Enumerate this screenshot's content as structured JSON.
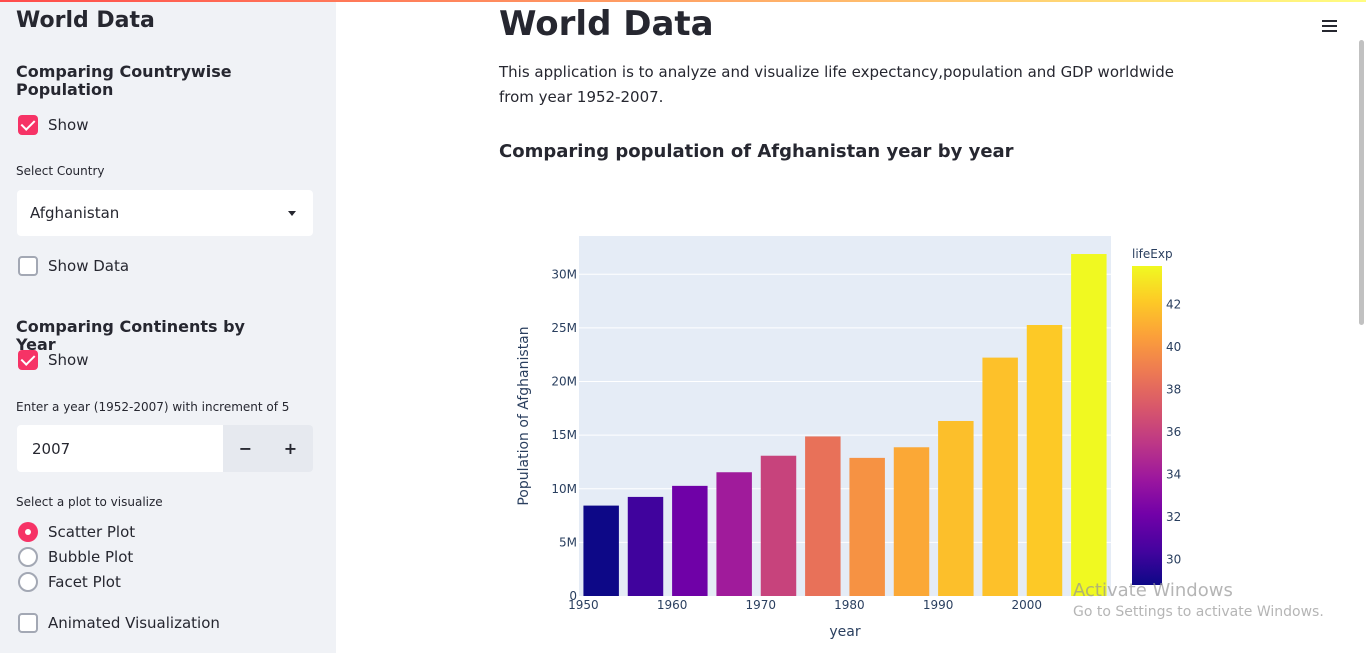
{
  "sidebar": {
    "title": "World Data",
    "section1": {
      "heading": "Comparing Countrywise Population",
      "show_label": "Show",
      "show_checked": true,
      "select_label": "Select Country",
      "select_value": "Afghanistan",
      "show_data_label": "Show Data",
      "show_data_checked": false
    },
    "section2": {
      "heading": "Comparing Continents by Year",
      "show_label": "Show",
      "show_checked": true,
      "year_label": "Enter a year (1952-2007) with increment of 5",
      "year_value": "2007",
      "minus_label": "−",
      "plus_label": "+",
      "plot_label": "Select a plot to visualize",
      "plot_options": [
        "Scatter Plot",
        "Bubble Plot",
        "Facet Plot"
      ],
      "plot_selected": "Scatter Plot",
      "animated_label": "Animated Visualization",
      "animated_checked": false
    }
  },
  "main": {
    "title": "World Data",
    "intro": "This application is to analyze and visualize life expectancy,population and GDP worldwide from year 1952-2007.",
    "subheading": "Comparing population of Afghanistan year by year"
  },
  "watermark": {
    "line1": "Activate Windows",
    "line2": "Go to Settings to activate Windows."
  },
  "colors": {
    "accent": "#f63366",
    "sidebar_bg": "#f0f2f6",
    "plot_bg": "#e5ecf6"
  },
  "chart_data": {
    "type": "bar",
    "x": [
      1952,
      1957,
      1962,
      1967,
      1972,
      1977,
      1982,
      1987,
      1992,
      1997,
      2002,
      2007
    ],
    "values": [
      8.43,
      9.24,
      10.27,
      11.54,
      13.08,
      14.88,
      12.88,
      13.87,
      16.32,
      22.23,
      25.27,
      31.89
    ],
    "lifeExp": [
      28.8,
      30.3,
      32.0,
      34.0,
      36.1,
      38.4,
      39.9,
      40.8,
      41.7,
      41.8,
      42.1,
      43.8
    ],
    "xlabel": "year",
    "ylabel": "Population of Afghanistan",
    "xticks": [
      "1950",
      "1960",
      "1970",
      "1980",
      "1990",
      "2000"
    ],
    "xtick_values": [
      1950,
      1960,
      1970,
      1980,
      1990,
      2000
    ],
    "yticks": [
      "0",
      "5M",
      "10M",
      "15M",
      "20M",
      "25M",
      "30M"
    ],
    "ytick_values": [
      0,
      5,
      10,
      15,
      20,
      25,
      30
    ],
    "xlim": [
      1949.5,
      2009.5
    ],
    "ylim": [
      0,
      33.57
    ],
    "colorbar": {
      "title": "lifeExp",
      "range": [
        28.8,
        43.8
      ],
      "ticks": [
        "30",
        "32",
        "34",
        "36",
        "38",
        "40",
        "42"
      ],
      "tick_values": [
        30,
        32,
        34,
        36,
        38,
        40,
        42
      ]
    },
    "grid": true
  }
}
